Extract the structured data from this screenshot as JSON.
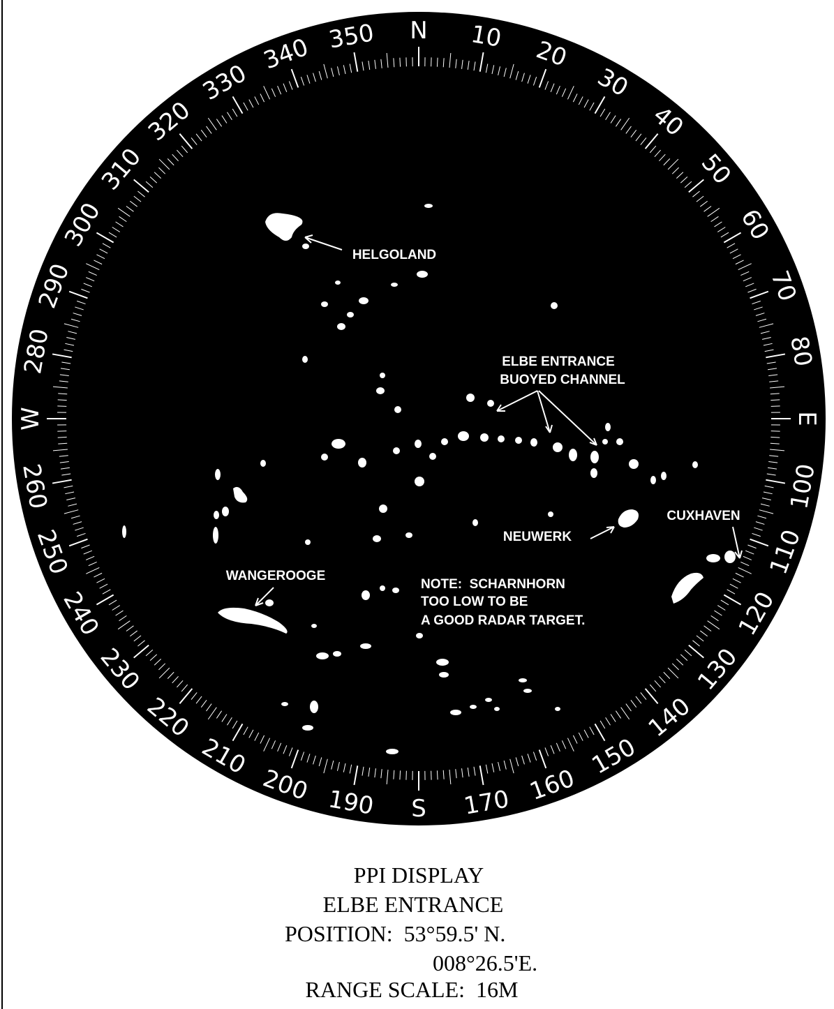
{
  "compass": {
    "labels": [
      "N",
      "10",
      "20",
      "30",
      "40",
      "50",
      "60",
      "70",
      "80",
      "E",
      "100",
      "110",
      "120",
      "130",
      "140",
      "150",
      "160",
      "170",
      "S",
      "190",
      "200",
      "210",
      "220",
      "230",
      "240",
      "250",
      "260",
      "W",
      "280",
      "290",
      "300",
      "310",
      "320",
      "330",
      "340",
      "350"
    ]
  },
  "annotations": {
    "helgoland": "HELGOLAND",
    "elbe": [
      "ELBE ENTRANCE",
      "BUOYED CHANNEL"
    ],
    "neuwerk": "NEUWERK",
    "cuxhaven": "CUXHAVEN",
    "wangerooge": "WANGEROOGE",
    "note": [
      "NOTE:  SCHARNHORN",
      "TOO LOW TO BE",
      "A GOOD RADAR TARGET."
    ]
  },
  "caption": {
    "title": "PPI DISPLAY",
    "area": "ELBE ENTRANCE",
    "position_lat": "POSITION:  53°59.5' N.",
    "position_lon": "008°26.5'E.",
    "range": "RANGE SCALE:  16M"
  }
}
